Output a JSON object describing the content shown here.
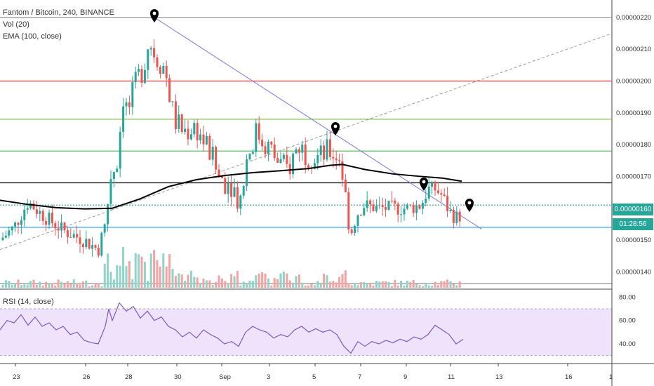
{
  "legend": {
    "title": "Fantom / Bitcoin, 240, BINANCE",
    "vol": "Vol (20)",
    "ema": "EMA (100, close)",
    "rsi": "RSI (14, close)"
  },
  "price_badge": "0.00000160",
  "countdown_badge": "01:28:56",
  "colors": {
    "up": "#26a69a",
    "down": "#ef5350",
    "ema": "#000000",
    "rsi": "#7e57c2",
    "rsi_band": "#efe3fb",
    "red_line": "#e53935",
    "green_line": "#8bc34a",
    "blue_line": "#2196f3",
    "trend_line": "#7b7bdf",
    "dashed_line": "#999999"
  },
  "chart_data": [
    {
      "type": "candlestick",
      "y_ticks": [
        "0.00000220",
        "0.00000210",
        "0.00000200",
        "0.00000190",
        "0.00000180",
        "0.00000170",
        "0.00000160",
        "0.00000150",
        "0.00000140"
      ],
      "x_ticks": [
        "23",
        "26",
        "28",
        "30",
        "Sep",
        "3",
        "5",
        "7",
        "9",
        "11",
        "13",
        "16",
        "1"
      ],
      "ylim": [
        1.35e-06,
        2.255e-06
      ],
      "horizontal_levels": [
        {
          "value": 2.2e-06,
          "color": "#888888"
        },
        {
          "value": 2e-06,
          "color": "#e53935"
        },
        {
          "value": 1.88e-06,
          "color": "#8bc34a"
        },
        {
          "value": 1.78e-06,
          "color": "#4caf50"
        },
        {
          "value": 1.68e-06,
          "color": "#000000"
        },
        {
          "value": 1.61e-06,
          "color": "#26a69a",
          "dotted": true
        },
        {
          "value": 1.54e-06,
          "color": "#2196f3"
        }
      ],
      "ema_100": [
        [
          0,
          1.625
        ],
        [
          40,
          1.612
        ],
        [
          80,
          1.602
        ],
        [
          120,
          1.598
        ],
        [
          160,
          1.6
        ],
        [
          200,
          1.63
        ],
        [
          240,
          1.668
        ],
        [
          280,
          1.69
        ],
        [
          320,
          1.703
        ],
        [
          360,
          1.712
        ],
        [
          400,
          1.718
        ],
        [
          440,
          1.725
        ],
        [
          470,
          1.735
        ],
        [
          488,
          1.738
        ],
        [
          520,
          1.722
        ],
        [
          560,
          1.708
        ],
        [
          600,
          1.7
        ],
        [
          630,
          1.695
        ],
        [
          658,
          1.685
        ]
      ]
    },
    {
      "type": "line",
      "ylabel": "",
      "y_ticks": [
        "80.00",
        "60.00",
        "40.00"
      ],
      "ylim": [
        25,
        85
      ],
      "band": [
        30,
        70
      ],
      "rsi_14": [
        [
          0,
          52
        ],
        [
          10,
          60
        ],
        [
          20,
          58
        ],
        [
          30,
          65
        ],
        [
          40,
          56
        ],
        [
          50,
          63
        ],
        [
          60,
          55
        ],
        [
          70,
          58
        ],
        [
          80,
          52
        ],
        [
          90,
          55
        ],
        [
          100,
          48
        ],
        [
          110,
          50
        ],
        [
          120,
          43
        ],
        [
          130,
          41
        ],
        [
          140,
          40
        ],
        [
          150,
          55
        ],
        [
          155,
          70
        ],
        [
          160,
          60
        ],
        [
          170,
          75
        ],
        [
          180,
          68
        ],
        [
          190,
          72
        ],
        [
          200,
          62
        ],
        [
          210,
          68
        ],
        [
          220,
          60
        ],
        [
          230,
          63
        ],
        [
          240,
          55
        ],
        [
          250,
          52
        ],
        [
          260,
          46
        ],
        [
          270,
          50
        ],
        [
          280,
          45
        ],
        [
          290,
          52
        ],
        [
          300,
          48
        ],
        [
          310,
          45
        ],
        [
          320,
          40
        ],
        [
          330,
          42
        ],
        [
          340,
          38
        ],
        [
          350,
          50
        ],
        [
          360,
          55
        ],
        [
          370,
          52
        ],
        [
          380,
          50
        ],
        [
          390,
          45
        ],
        [
          400,
          48
        ],
        [
          410,
          46
        ],
        [
          420,
          52
        ],
        [
          430,
          55
        ],
        [
          440,
          50
        ],
        [
          450,
          53
        ],
        [
          460,
          50
        ],
        [
          470,
          52
        ],
        [
          480,
          48
        ],
        [
          490,
          38
        ],
        [
          500,
          32
        ],
        [
          510,
          42
        ],
        [
          520,
          38
        ],
        [
          530,
          42
        ],
        [
          540,
          40
        ],
        [
          550,
          43
        ],
        [
          560,
          41
        ],
        [
          570,
          44
        ],
        [
          580,
          42
        ],
        [
          590,
          46
        ],
        [
          600,
          44
        ],
        [
          610,
          48
        ],
        [
          620,
          56
        ],
        [
          630,
          52
        ],
        [
          640,
          48
        ],
        [
          650,
          40
        ],
        [
          660,
          44
        ]
      ]
    }
  ]
}
